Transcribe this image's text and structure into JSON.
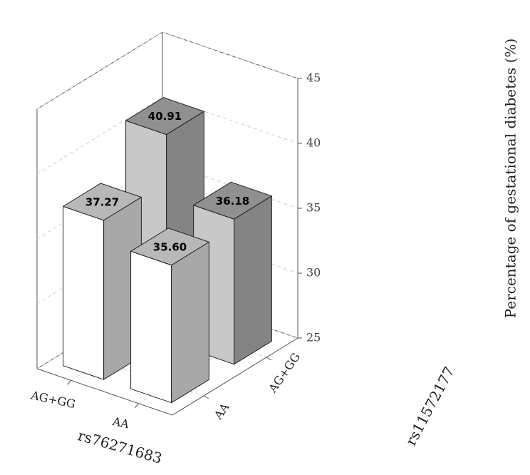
{
  "chart_data": {
    "type": "bar3d",
    "x_title": "rs76271683",
    "y_title": "rs11572177",
    "z_title": "Percentage of gestational diabetes (%)",
    "categories": [
      "AG+GG",
      "AA"
    ],
    "series": [
      {
        "name": "AA",
        "color": "#ffffff",
        "values": [
          37.27,
          35.6
        ],
        "value_labels": [
          "37.27",
          "35.60"
        ]
      },
      {
        "name": "AG+GG",
        "color": "#c8c8c8",
        "values": [
          40.91,
          36.18
        ],
        "value_labels": [
          "40.91",
          "36.18"
        ]
      }
    ],
    "zlim": [
      25,
      45
    ],
    "zticks": [
      25,
      30,
      35,
      40,
      45
    ],
    "grid": true
  }
}
